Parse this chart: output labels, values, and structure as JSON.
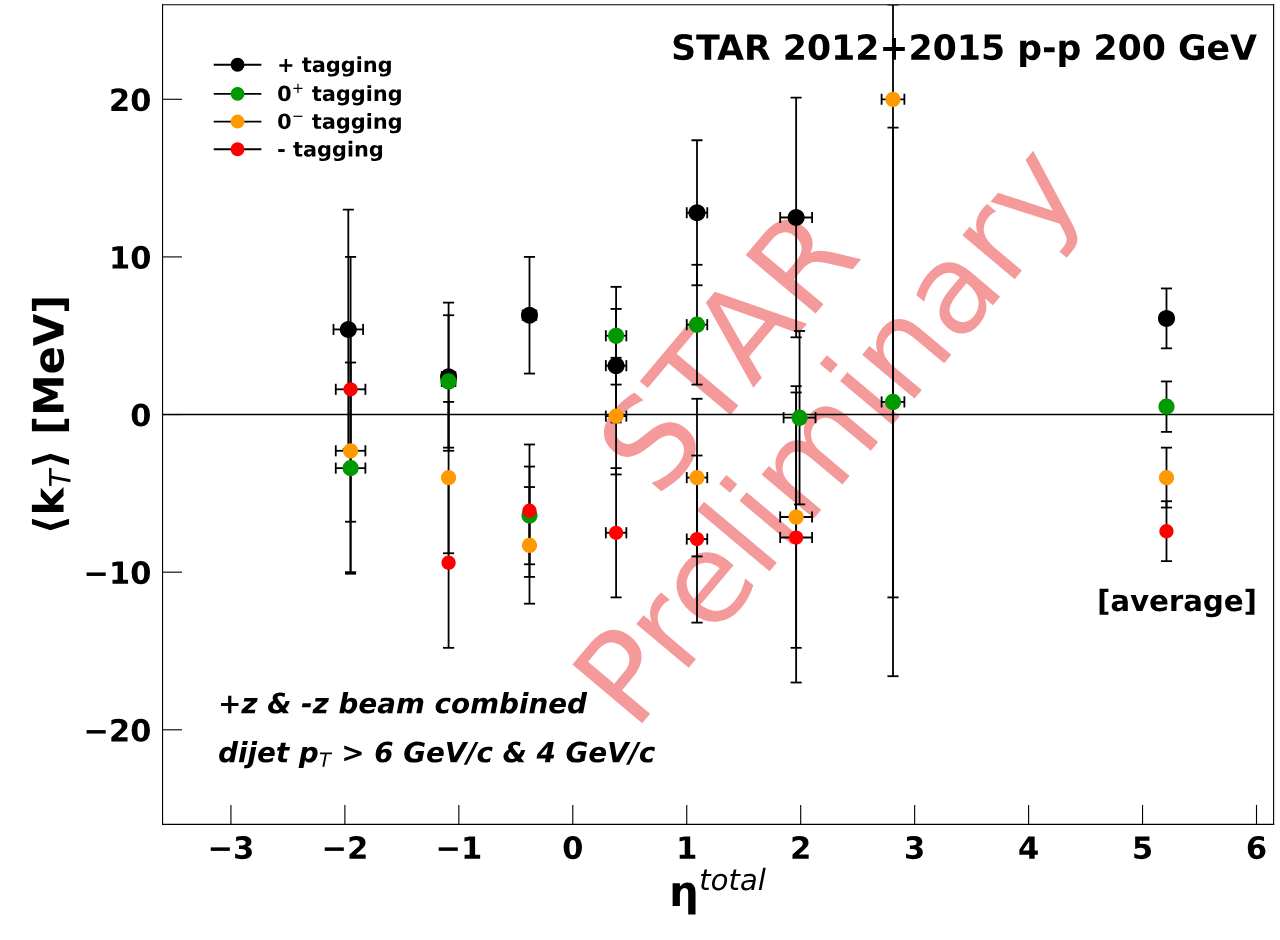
{
  "chart_data": {
    "type": "scatter",
    "title": "STAR 2012+2015 p-p 200 GeV",
    "xlabel": "η$^{total}$",
    "ylabel": "⟨k$_{T}$⟩ [MeV]",
    "xlim": [
      -3.6,
      6.15
    ],
    "ylim": [
      -26,
      26
    ],
    "xticks": [
      -3,
      -2,
      -1,
      0,
      1,
      2,
      3,
      4,
      5,
      6
    ],
    "yticks": [
      -20,
      -10,
      0,
      10,
      20
    ],
    "grid": false,
    "legend": "top left",
    "marker": "circle",
    "ref_lines": [
      {
        "axis": "y",
        "value": 0,
        "color": "#000000"
      }
    ],
    "annotations": [
      "[average]",
      "+z & -z beam combined",
      "dijet p$_{T}$ > 6 GeV/c & 4 GeV/c",
      "STAR Preliminary"
    ],
    "series": [
      {
        "name": "+ tagging",
        "color": "#000000",
        "x": [
          -1.97,
          -1.09,
          -0.38,
          0.38,
          1.09,
          1.96,
          5.21
        ],
        "values": [
          5.4,
          2.4,
          6.3,
          3.1,
          12.8,
          12.5,
          6.1
        ],
        "errors": [
          7.6,
          4.7,
          3.7,
          3.6,
          4.6,
          7.6,
          1.9
        ],
        "xerrors": [
          0.13,
          0.06,
          0.06,
          0.09,
          0.09,
          0.14,
          null
        ]
      },
      {
        "name": "0$^{+}$ tagging",
        "color": "#009900",
        "x": [
          -1.95,
          -1.09,
          -0.38,
          0.38,
          1.09,
          1.99,
          2.81,
          5.21
        ],
        "values": [
          -3.4,
          2.1,
          -6.4,
          5.0,
          5.7,
          -0.2,
          0.8,
          0.5
        ],
        "errors": [
          6.7,
          4.2,
          3.1,
          3.1,
          3.8,
          5.5,
          17.4,
          1.6
        ],
        "xerrors": [
          0.13,
          0.06,
          null,
          0.09,
          0.09,
          0.14,
          0.1,
          null
        ]
      },
      {
        "name": "0$^{−}$ tagging",
        "color": "#ff9900",
        "x": [
          -1.95,
          -1.09,
          -0.38,
          0.38,
          1.09,
          1.96,
          2.81,
          5.21
        ],
        "values": [
          -2.3,
          -4.0,
          -8.3,
          -0.1,
          -4.0,
          -6.5,
          20.0,
          -4.0
        ],
        "errors": [
          7.7,
          4.8,
          3.7,
          3.7,
          5.0,
          8.3,
          [
            -11.6,
            26.0
          ],
          1.9
        ],
        "xerrors": [
          0.13,
          null,
          null,
          0.09,
          0.09,
          0.14,
          0.1,
          null
        ]
      },
      {
        "name": "- tagging",
        "color": "#ff0000",
        "x": [
          -1.95,
          -1.09,
          -0.38,
          0.38,
          1.09,
          1.96,
          5.21
        ],
        "values": [
          1.6,
          -9.4,
          -6.1,
          -7.5,
          -7.9,
          -7.8,
          -7.4
        ],
        "errors": [
          8.4,
          5.4,
          4.2,
          4.1,
          5.3,
          9.2,
          1.9
        ],
        "xerrors": [
          0.13,
          null,
          null,
          0.09,
          0.09,
          0.14,
          null
        ]
      }
    ]
  }
}
